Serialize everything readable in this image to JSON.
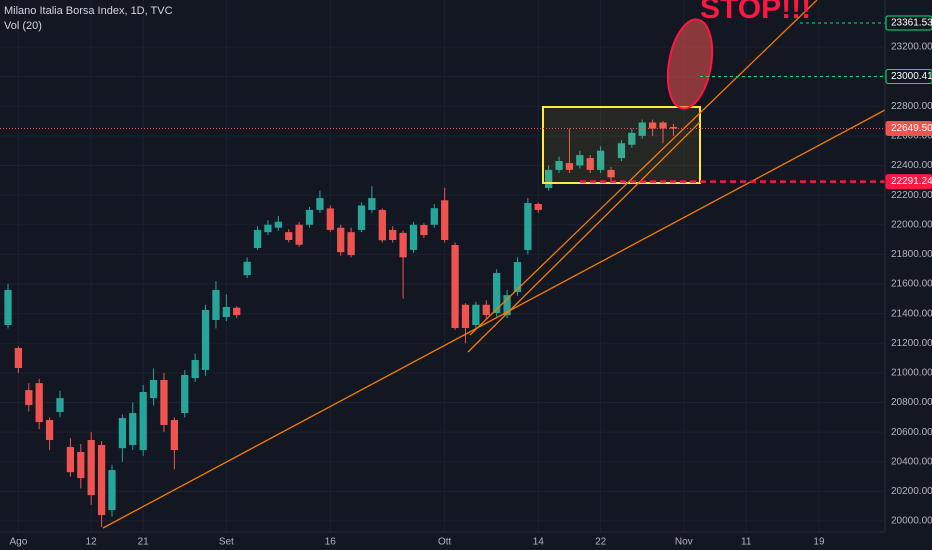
{
  "chart_data": {
    "type": "candlestick",
    "title": "Milano Italia Borsa Index, 1D, TVC",
    "indicator": "Vol (20)",
    "annotation": "STOP!!!",
    "up_color": "#26a69a",
    "down_color": "#ef5350",
    "grid": true,
    "xlim": [
      -0.77,
      84.35
    ],
    "ylim": [
      19926,
      23517
    ],
    "xticks": [
      {
        "value": 1,
        "label": "Ago"
      },
      {
        "value": 8,
        "label": "12"
      },
      {
        "value": 13,
        "label": "21"
      },
      {
        "value": 21,
        "label": "Set"
      },
      {
        "value": 31,
        "label": "16"
      },
      {
        "value": 42,
        "label": "Ott"
      },
      {
        "value": 51,
        "label": "14"
      },
      {
        "value": 57,
        "label": "22"
      },
      {
        "value": 65,
        "label": "Nov"
      },
      {
        "value": 71,
        "label": "11"
      },
      {
        "value": 78,
        "label": "19"
      }
    ],
    "yticks": [
      {
        "value": 20000,
        "label": "20000.00"
      },
      {
        "value": 20200,
        "label": "20200.00"
      },
      {
        "value": 20400,
        "label": "20400.00"
      },
      {
        "value": 20600,
        "label": "20600.00"
      },
      {
        "value": 20800,
        "label": "20800.00"
      },
      {
        "value": 21000,
        "label": "21000.00"
      },
      {
        "value": 21200,
        "label": "21200.00"
      },
      {
        "value": 21400,
        "label": "21400.00"
      },
      {
        "value": 21600,
        "label": "21600.00"
      },
      {
        "value": 21800,
        "label": "21800.00"
      },
      {
        "value": 22000,
        "label": "22000.00"
      },
      {
        "value": 22200,
        "label": "22200.00"
      },
      {
        "value": 22400,
        "label": "22400.00"
      },
      {
        "value": 22600,
        "label": "22600.00"
      },
      {
        "value": 22800,
        "label": "22800.00"
      },
      {
        "value": 23000,
        "label": "23000.00"
      },
      {
        "value": 23200,
        "label": "23200.00"
      }
    ],
    "open": [
      21323,
      21168,
      20884,
      20931,
      20682,
      20736,
      20500,
      20466,
      20547,
      20513,
      20074,
      20492,
      20513,
      20479,
      20830,
      20952,
      20682,
      20729,
      20965,
      21020,
      21357,
      21377,
      21440,
      21660,
      21843,
      21950,
      21980,
      21950,
      22000,
      22000,
      22100,
      22110,
      21980,
      21950,
      21965,
      22100,
      22100,
      21965,
      21945,
      21830,
      21998,
      22000,
      22165,
      21863,
      21460,
      21323,
      21460,
      21404,
      21390,
      21546,
      21830,
      22140,
      22248,
      22370,
      22416,
      22400,
      22450,
      22370,
      22370,
      22450,
      22540,
      22600,
      22690,
      22690,
      22660
    ],
    "high": [
      21600,
      21180,
      20930,
      20960,
      20700,
      20880,
      20560,
      20520,
      20600,
      20540,
      20380,
      20720,
      20800,
      20920,
      21030,
      21000,
      20700,
      21020,
      21130,
      21460,
      21620,
      21530,
      21450,
      21780,
      21990,
      22030,
      22060,
      21970,
      22020,
      22120,
      22230,
      22130,
      22000,
      21980,
      22150,
      22260,
      22110,
      21990,
      21960,
      22020,
      22010,
      22140,
      22250,
      21880,
      21470,
      21480,
      21490,
      21700,
      21560,
      21780,
      22180,
      22150,
      22400,
      22460,
      22650,
      22500,
      22470,
      22530,
      22390,
      22570,
      22650,
      22710,
      22710,
      22700,
      22680
    ],
    "low": [
      21300,
      21000,
      20740,
      20620,
      20480,
      20700,
      20300,
      20220,
      20110,
      19960,
      20030,
      20400,
      20480,
      20440,
      20780,
      20600,
      20350,
      20700,
      20940,
      20980,
      21300,
      21350,
      21370,
      21640,
      21830,
      21930,
      21960,
      21880,
      21850,
      21980,
      22080,
      21950,
      21790,
      21780,
      21950,
      22080,
      21880,
      21880,
      21500,
      21810,
      21910,
      21980,
      21880,
      21290,
      21200,
      21300,
      21370,
      21380,
      21370,
      21520,
      21800,
      22080,
      22230,
      22350,
      22350,
      22380,
      22350,
      22350,
      22300,
      22430,
      22520,
      22580,
      22600,
      22550,
      22600
    ],
    "close": [
      21560,
      21033,
      20783,
      20668,
      20547,
      20830,
      20330,
      20290,
      20175,
      20040,
      20344,
      20695,
      20729,
      20871,
      20952,
      20648,
      20479,
      20986,
      21087,
      21425,
      21560,
      21445,
      21390,
      21750,
      21965,
      22000,
      22020,
      21897,
      21865,
      22100,
      22180,
      21965,
      21815,
      21795,
      22130,
      22180,
      21895,
      21897,
      21780,
      22000,
      21930,
      22112,
      21897,
      21303,
      21303,
      21460,
      21390,
      21674,
      21525,
      21748,
      22146,
      22100,
      22370,
      22430,
      22370,
      22470,
      22370,
      22500,
      22320,
      22550,
      22620,
      22690,
      22650,
      22650,
      22649.5
    ],
    "price_lines": [
      {
        "value": 23361.53,
        "color": "#00e676",
        "style": "dashed"
      },
      {
        "value": 23000.41,
        "color": "#00e676",
        "style": "dashed"
      },
      {
        "value": 22649.5,
        "label": "22649.50",
        "color": "#ef5350",
        "style": "dotted"
      },
      {
        "value": 22291.24,
        "color": "#ff1744",
        "style": "thick"
      }
    ]
  }
}
